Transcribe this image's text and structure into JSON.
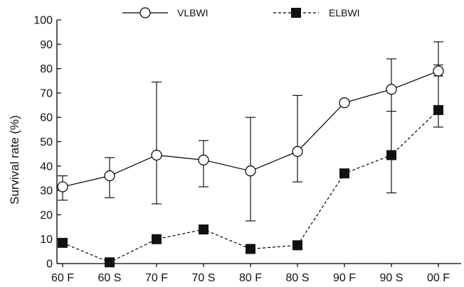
{
  "chart_data": {
    "type": "line",
    "ylabel": "Survival rate (%)",
    "xlabel": "",
    "ylim": [
      0,
      100
    ],
    "yticks": [
      0,
      10,
      20,
      30,
      40,
      50,
      60,
      70,
      80,
      90,
      100
    ],
    "categories": [
      "60 F",
      "60 S",
      "70 F",
      "70 S",
      "80 F",
      "80 S",
      "90 F",
      "90 S",
      "00 F"
    ],
    "legend_position": "top",
    "grid": false,
    "series": [
      {
        "name": "VLBWI",
        "marker": "open-circle",
        "line_style": "solid",
        "color": "#000000",
        "values": [
          31.5,
          36,
          44.5,
          42.5,
          38,
          46,
          66,
          71.5,
          79
        ],
        "error_low": [
          26,
          27,
          24.5,
          31.5,
          17.5,
          33.5,
          null,
          29,
          81.5
        ],
        "error_high": [
          36,
          43.5,
          74.5,
          50.5,
          60,
          69,
          null,
          84,
          91
        ]
      },
      {
        "name": "ELBWI",
        "marker": "filled-square",
        "line_style": "dashed",
        "color": "#000000",
        "values": [
          8.5,
          0.5,
          10,
          14,
          6,
          7.5,
          37,
          44.5,
          63
        ],
        "error_low": [
          null,
          null,
          null,
          null,
          null,
          null,
          null,
          null,
          56
        ],
        "error_high": [
          null,
          null,
          null,
          null,
          null,
          null,
          null,
          62.5,
          77
        ]
      }
    ]
  }
}
